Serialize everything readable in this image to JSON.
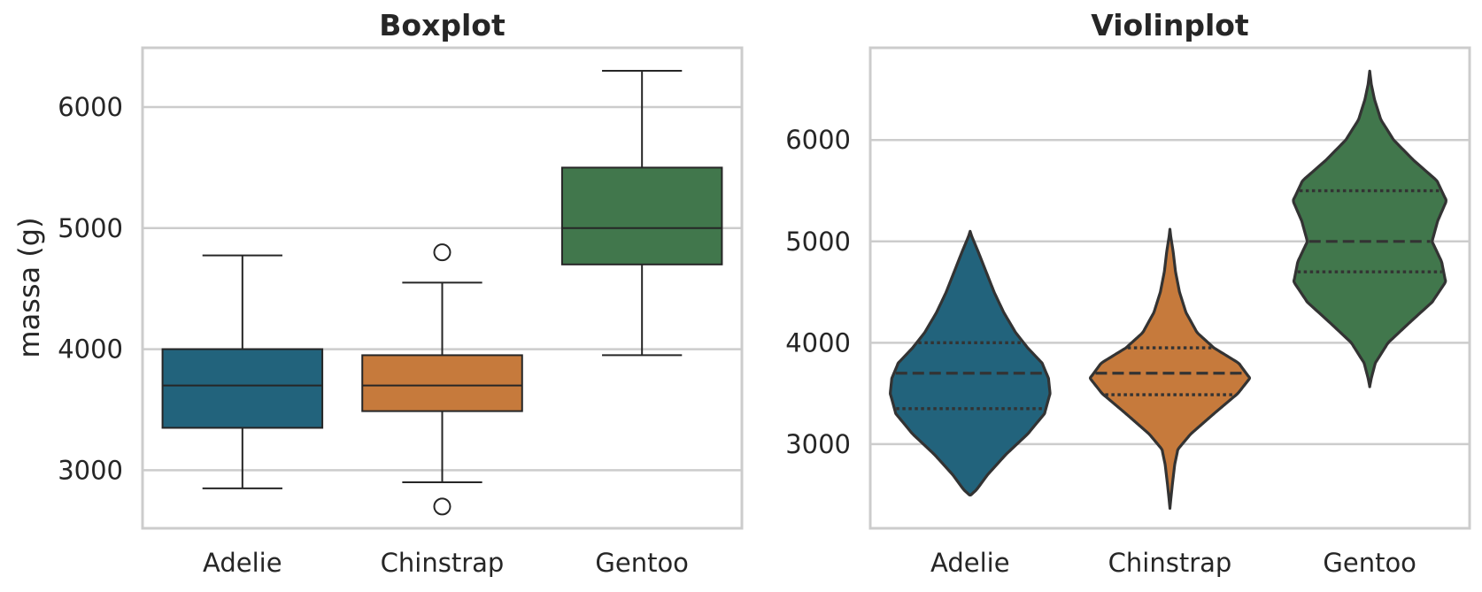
{
  "chart_data": [
    {
      "type": "box",
      "title": "Boxplot",
      "xlabel": "",
      "ylabel": "massa (g)",
      "categories": [
        "Adelie",
        "Chinstrap",
        "Gentoo"
      ],
      "yticks": [
        3000,
        4000,
        5000,
        6000
      ],
      "ylim": [
        2520,
        6490
      ],
      "grid": true,
      "boxes": [
        {
          "category": "Adelie",
          "min": 2850,
          "q1": 3350,
          "median": 3700,
          "q3": 4000,
          "max": 4775,
          "outliers": [],
          "color": "#22637c"
        },
        {
          "category": "Chinstrap",
          "min": 2900,
          "q1": 3488,
          "median": 3700,
          "q3": 3950,
          "max": 4550,
          "outliers": [
            4800,
            2700
          ],
          "color": "#c67a3c"
        },
        {
          "category": "Gentoo",
          "min": 3950,
          "q1": 4700,
          "median": 5000,
          "q3": 5500,
          "max": 6300,
          "outliers": [],
          "color": "#41774c"
        }
      ]
    },
    {
      "type": "violin",
      "title": "Violinplot",
      "xlabel": "",
      "ylabel": "",
      "categories": [
        "Adelie",
        "Chinstrap",
        "Gentoo"
      ],
      "yticks": [
        3000,
        4000,
        5000,
        6000
      ],
      "ylim": [
        2170,
        6910
      ],
      "grid": true,
      "violins": [
        {
          "category": "Adelie",
          "y_range": [
            2500,
            5100
          ],
          "q1": 3350,
          "median": 3700,
          "q3": 4000,
          "color": "#22637c",
          "profile": [
            [
              2500,
              0.01
            ],
            [
              2550,
              0.08
            ],
            [
              2700,
              0.22
            ],
            [
              2900,
              0.45
            ],
            [
              3100,
              0.72
            ],
            [
              3300,
              0.93
            ],
            [
              3500,
              1.0
            ],
            [
              3650,
              0.98
            ],
            [
              3800,
              0.9
            ],
            [
              3950,
              0.72
            ],
            [
              4100,
              0.57
            ],
            [
              4300,
              0.42
            ],
            [
              4500,
              0.3
            ],
            [
              4700,
              0.2
            ],
            [
              4900,
              0.1
            ],
            [
              5050,
              0.02
            ],
            [
              5100,
              0.0
            ]
          ]
        },
        {
          "category": "Chinstrap",
          "y_range": [
            2370,
            5120
          ],
          "q1": 3488,
          "median": 3700,
          "q3": 3950,
          "color": "#c67a3c",
          "profile": [
            [
              2370,
              0.0
            ],
            [
              2450,
              0.01
            ],
            [
              2600,
              0.03
            ],
            [
              2800,
              0.06
            ],
            [
              2950,
              0.1
            ],
            [
              3100,
              0.26
            ],
            [
              3300,
              0.55
            ],
            [
              3500,
              0.85
            ],
            [
              3650,
              1.0
            ],
            [
              3800,
              0.86
            ],
            [
              3950,
              0.55
            ],
            [
              4100,
              0.34
            ],
            [
              4300,
              0.2
            ],
            [
              4500,
              0.12
            ],
            [
              4700,
              0.07
            ],
            [
              4900,
              0.04
            ],
            [
              5050,
              0.01
            ],
            [
              5120,
              0.0
            ]
          ]
        },
        {
          "category": "Gentoo",
          "y_range": [
            3570,
            6680
          ],
          "q1": 4700,
          "median": 5000,
          "q3": 5500,
          "color": "#41774c",
          "profile": [
            [
              3570,
              0.0
            ],
            [
              3650,
              0.02
            ],
            [
              3800,
              0.07
            ],
            [
              4000,
              0.23
            ],
            [
              4200,
              0.5
            ],
            [
              4400,
              0.78
            ],
            [
              4600,
              0.95
            ],
            [
              4800,
              0.9
            ],
            [
              5000,
              0.78
            ],
            [
              5200,
              0.85
            ],
            [
              5400,
              0.96
            ],
            [
              5600,
              0.84
            ],
            [
              5800,
              0.55
            ],
            [
              6000,
              0.3
            ],
            [
              6200,
              0.14
            ],
            [
              6400,
              0.06
            ],
            [
              6550,
              0.02
            ],
            [
              6680,
              0.0
            ]
          ]
        }
      ]
    }
  ]
}
